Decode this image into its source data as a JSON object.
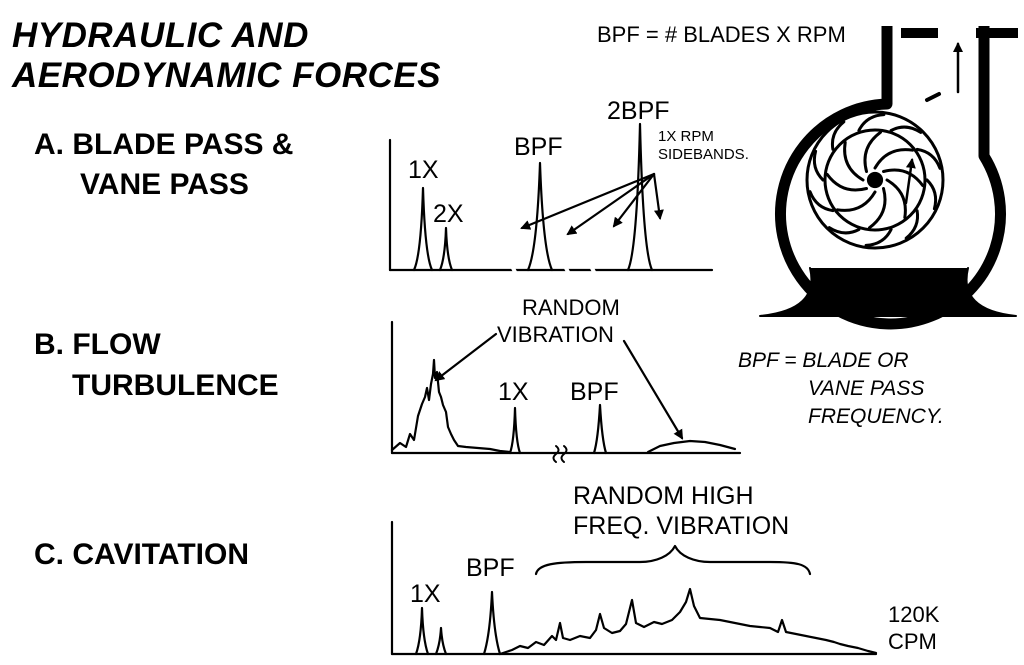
{
  "title": {
    "line1": "HYDRAULIC AND",
    "line2": "AERODYNAMIC FORCES"
  },
  "formula": "BPF = # BLADES X RPM",
  "sections": {
    "a": {
      "line1": "A. BLADE PASS &",
      "line2": "VANE PASS",
      "peaks": {
        "one_x": "1X",
        "two_x": "2X",
        "bpf": "BPF",
        "two_bpf": "2BPF"
      },
      "sidebands": {
        "line1": "1X RPM",
        "line2": "SIDEBANDS."
      }
    },
    "b": {
      "line1": "B. FLOW",
      "line2": "TURBULENCE",
      "random": {
        "line1": "RANDOM",
        "line2": "VIBRATION"
      },
      "peaks": {
        "one_x": "1X",
        "bpf": "BPF"
      }
    },
    "c": {
      "line1": "C. CAVITATION",
      "random": {
        "line1": "RANDOM HIGH",
        "line2": "FREQ. VIBRATION"
      },
      "peaks": {
        "one_x": "1X",
        "bpf": "BPF"
      },
      "axis_end": {
        "line1": "120K",
        "line2": "CPM"
      }
    }
  },
  "definition": {
    "line1": "BPF = BLADE OR",
    "line2": "VANE PASS",
    "line3": "FREQUENCY."
  },
  "colors": {
    "ink": "#000000",
    "paper": "#ffffff"
  }
}
